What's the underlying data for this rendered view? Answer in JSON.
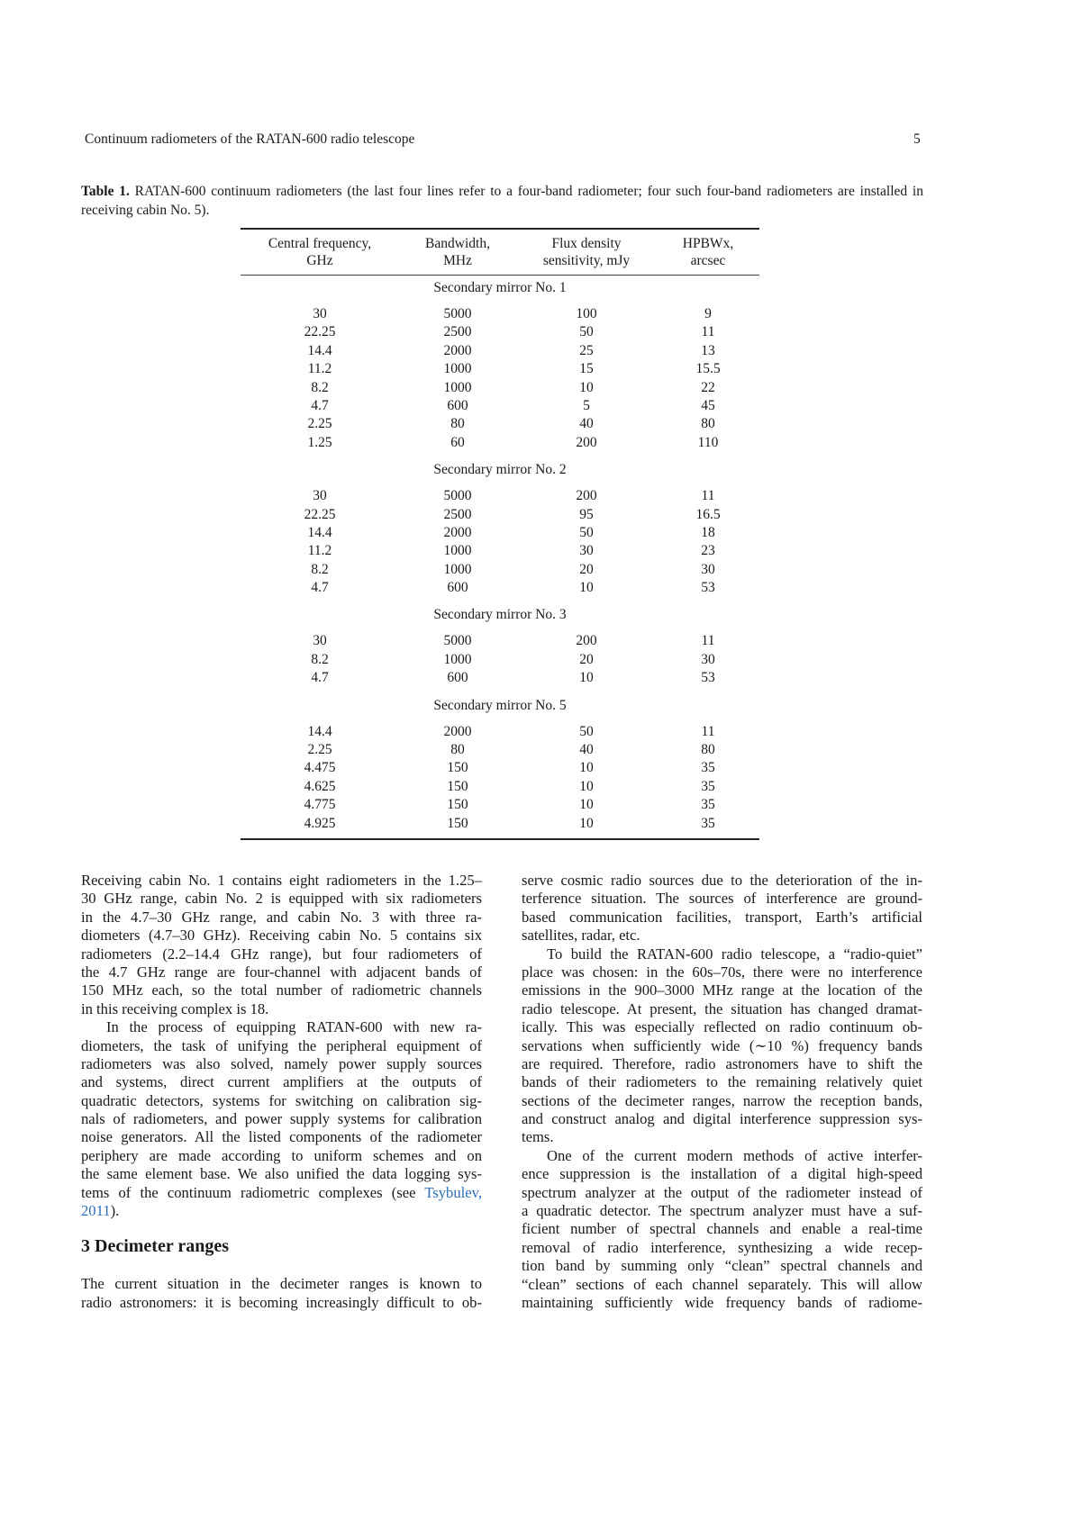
{
  "header": {
    "running_title": "Continuum radiometers of the RATAN-600 radio telescope",
    "page_number": "5"
  },
  "table": {
    "caption_label": "Table 1.",
    "caption_text": " RATAN-600 continuum radiometers (the last four lines refer to a four-band radiometer; four such four-band radiometers are installed in receiving cabin No. 5).",
    "columns": [
      [
        "Central frequency,",
        "GHz"
      ],
      [
        "Bandwidth,",
        "MHz"
      ],
      [
        "Flux density",
        "sensitivity, mJy"
      ],
      [
        "HPBWx,",
        "arcsec"
      ]
    ],
    "groups": [
      {
        "title": "Secondary mirror No. 1",
        "rows": [
          [
            "30",
            "5000",
            "100",
            "9"
          ],
          [
            "22.25",
            "2500",
            "50",
            "11"
          ],
          [
            "14.4",
            "2000",
            "25",
            "13"
          ],
          [
            "11.2",
            "1000",
            "15",
            "15.5"
          ],
          [
            "8.2",
            "1000",
            "10",
            "22"
          ],
          [
            "4.7",
            "600",
            "5",
            "45"
          ],
          [
            "2.25",
            "80",
            "40",
            "80"
          ],
          [
            "1.25",
            "60",
            "200",
            "110"
          ]
        ]
      },
      {
        "title": "Secondary mirror No. 2",
        "rows": [
          [
            "30",
            "5000",
            "200",
            "11"
          ],
          [
            "22.25",
            "2500",
            "95",
            "16.5"
          ],
          [
            "14.4",
            "2000",
            "50",
            "18"
          ],
          [
            "11.2",
            "1000",
            "30",
            "23"
          ],
          [
            "8.2",
            "1000",
            "20",
            "30"
          ],
          [
            "4.7",
            "600",
            "10",
            "53"
          ]
        ]
      },
      {
        "title": "Secondary mirror No. 3",
        "rows": [
          [
            "30",
            "5000",
            "200",
            "11"
          ],
          [
            "8.2",
            "1000",
            "20",
            "30"
          ],
          [
            "4.7",
            "600",
            "10",
            "53"
          ]
        ]
      },
      {
        "title": "Secondary mirror No. 5",
        "rows": [
          [
            "14.4",
            "2000",
            "50",
            "11"
          ],
          [
            "2.25",
            "80",
            "40",
            "80"
          ],
          [
            "4.475",
            "150",
            "10",
            "35"
          ],
          [
            "4.625",
            "150",
            "10",
            "35"
          ],
          [
            "4.775",
            "150",
            "10",
            "35"
          ],
          [
            "4.925",
            "150",
            "10",
            "35"
          ]
        ]
      }
    ]
  },
  "body": {
    "left": [
      {
        "type": "p",
        "indent": false,
        "lines": [
          "Receiving cabin No. 1 contains eight radiometers in the 1.25–",
          "30 GHz range, cabin No. 2 is equipped with six radiometers",
          "in the 4.7–30 GHz range, and cabin No. 3 with three ra-",
          "diometers (4.7–30 GHz). Receiving cabin No. 5 contains six",
          "radiometers (2.2–14.4 GHz range), but four radiometers of",
          "the 4.7 GHz range are four-channel with adjacent bands of",
          "150 MHz each, so the total number of radiometric channels",
          "in this receiving complex is 18."
        ]
      },
      {
        "type": "p",
        "indent": true,
        "lines": [
          "In the process of equipping RATAN-600 with new ra-",
          "diometers, the task of unifying the peripheral equipment of",
          "radiometers was also solved, namely power supply sources",
          "and systems, direct current amplifiers at the outputs of",
          "quadratic detectors, systems for switching on calibration sig-",
          "nals of radiometers, and power supply systems for calibration",
          "noise generators. All the listed components of the radiometer",
          "periphery are made according to uniform schemes and on",
          "the same element base. We also unified the data logging sys-",
          {
            "pre": "tems of the continuum radiometric complexes (see ",
            "link": "Tsybulev,",
            "post": ""
          },
          {
            "pre": "",
            "link": "2011",
            "post": ")."
          }
        ]
      },
      {
        "type": "h",
        "text": "3  Decimeter ranges"
      },
      {
        "type": "p",
        "indent": false,
        "open": true,
        "lines": [
          "The current situation in the decimeter ranges is known to",
          "radio astronomers: it is becoming increasingly difficult to ob-"
        ]
      }
    ],
    "right": [
      {
        "type": "p",
        "indent": false,
        "lines": [
          "serve cosmic radio sources due to the deterioration of the in-",
          "terference situation. The sources of interference are ground-",
          "based communication facilities, transport, Earth’s artificial",
          "satellites, radar, etc."
        ]
      },
      {
        "type": "p",
        "indent": true,
        "lines": [
          "To build the RATAN-600 radio telescope, a “radio-quiet”",
          "place was chosen: in the 60s–70s, there were no interference",
          "emissions in the 900–3000 MHz range at the location of the",
          "radio telescope. At present, the situation has changed dramat-",
          "ically. This was especially reflected on radio continuum ob-",
          "servations when sufficiently wide (∼10 %) frequency bands",
          "are required. Therefore, radio astronomers have to shift the",
          "bands of their radiometers to the remaining relatively quiet",
          "sections of the decimeter ranges, narrow the reception bands,",
          "and construct analog and digital interference suppression sys-",
          "tems."
        ]
      },
      {
        "type": "p",
        "indent": true,
        "open": true,
        "lines": [
          "One of the current modern methods of active interfer-",
          "ence suppression is the installation of a digital high-speed",
          "spectrum analyzer at the output of the radiometer instead of",
          "a quadratic detector. The spectrum analyzer must have a suf-",
          "ficient number of spectral channels and enable a real-time",
          "removal of radio interference, synthesizing a wide recep-",
          "tion band by summing only “clean” spectral channels and",
          "“clean” sections of each channel separately. This will allow",
          "maintaining sufficiently wide frequency bands of radiome-"
        ]
      }
    ]
  },
  "colors": {
    "link": "#2a6ebb",
    "text": "#1a1a1a"
  }
}
